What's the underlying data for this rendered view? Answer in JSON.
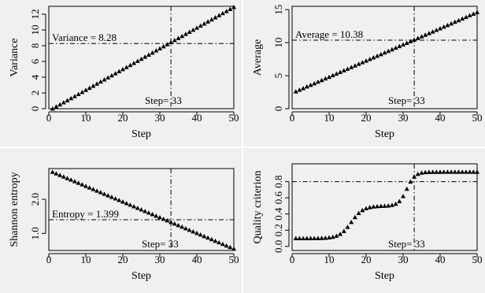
{
  "chart_data": [
    {
      "type": "scatter",
      "title": "",
      "xlabel": "Step",
      "ylabel": "Variance",
      "xlim": [
        0,
        50
      ],
      "ylim": [
        0,
        13
      ],
      "xticks": [
        "0",
        "10",
        "20",
        "30",
        "40",
        "50"
      ],
      "yticks": [
        "0",
        "2",
        "4",
        "6",
        "8",
        "10",
        "12"
      ],
      "marker": "filled-triangle",
      "grid": false,
      "series": [
        {
          "start": [
            1,
            0.0
          ],
          "end": [
            50,
            12.9
          ],
          "shape": "linear",
          "n_points": 50
        }
      ],
      "reference": {
        "vline_x": 33,
        "hline_y": 8.28,
        "line_style": "dash-dot"
      },
      "annotations": {
        "hline_label": "Variance = 8.28",
        "vline_label": "Step= 33"
      }
    },
    {
      "type": "scatter",
      "title": "",
      "xlabel": "Step",
      "ylabel": "Average",
      "xlim": [
        0,
        50
      ],
      "ylim": [
        0,
        15.5
      ],
      "xticks": [
        "0",
        "10",
        "20",
        "30",
        "40",
        "50"
      ],
      "yticks": [
        "0",
        "5",
        "10",
        "15"
      ],
      "marker": "filled-triangle",
      "grid": false,
      "series": [
        {
          "start": [
            1,
            2.6
          ],
          "end": [
            50,
            14.6
          ],
          "shape": "linear",
          "n_points": 50
        }
      ],
      "reference": {
        "vline_x": 33,
        "hline_y": 10.38,
        "line_style": "dash-dot"
      },
      "annotations": {
        "hline_label": "Average = 10.38",
        "vline_label": "Step= 33"
      }
    },
    {
      "type": "scatter",
      "title": "",
      "xlabel": "Step",
      "ylabel": "Shannon entropy",
      "xlim": [
        0,
        50
      ],
      "ylim": [
        0.5,
        2.9
      ],
      "xticks": [
        "0",
        "10",
        "20",
        "30",
        "40",
        "50"
      ],
      "yticks": [
        "1.0",
        "2.0"
      ],
      "ytick_values": [
        1.0,
        2.0
      ],
      "marker": "filled-triangle",
      "grid": false,
      "series": [
        {
          "start": [
            1,
            2.8
          ],
          "end": [
            50,
            0.55
          ],
          "shape": "linear",
          "n_points": 50
        }
      ],
      "reference": {
        "vline_x": 33,
        "hline_y": 1.399,
        "line_style": "dash-dot"
      },
      "annotations": {
        "hline_label": "Entropy = 1.399",
        "vline_label": "Step= 33"
      }
    },
    {
      "type": "scatter",
      "title": "",
      "xlabel": "Step",
      "ylabel": "Quality criterion",
      "xlim": [
        0,
        50
      ],
      "ylim": [
        -0.05,
        1.02
      ],
      "xticks": [
        "0",
        "10",
        "20",
        "30",
        "40",
        "50"
      ],
      "yticks": [
        "0.0",
        "0.2",
        "0.4",
        "0.6",
        "0.8"
      ],
      "ytick_values": [
        0.0,
        0.2,
        0.4,
        0.6,
        0.8
      ],
      "marker": "filled-triangle",
      "grid": false,
      "series": [
        {
          "shape": "sigmoid-steps",
          "n_points": 50,
          "low": 0.1,
          "plateau": 0.5,
          "high": 0.92,
          "rise1_center": 16,
          "rise2_center": 31
        }
      ],
      "reference": {
        "vline_x": 33,
        "hline_y": 0.8,
        "line_style": "dash-dot"
      },
      "annotations": {
        "vline_label": "Step= 33"
      }
    }
  ]
}
